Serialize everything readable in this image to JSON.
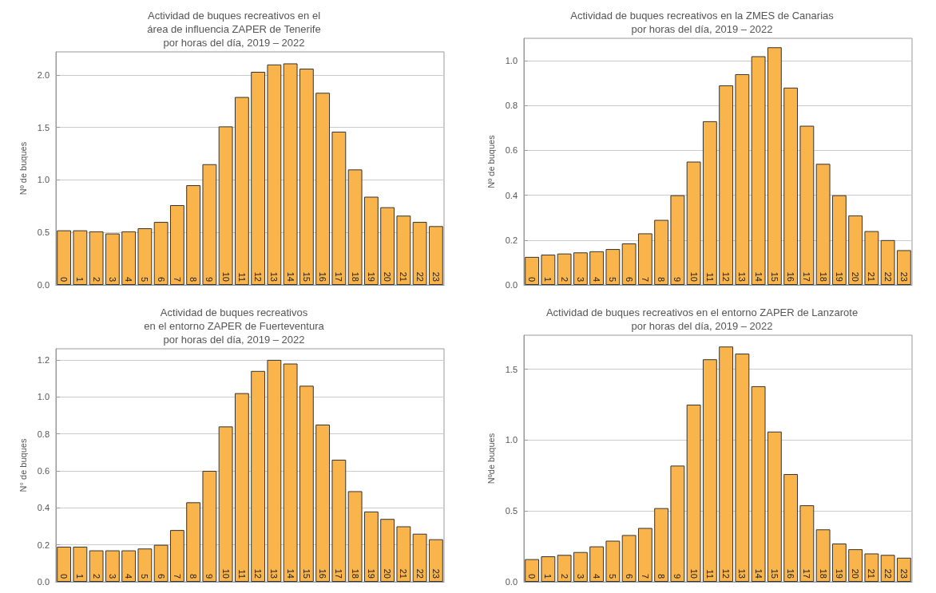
{
  "chart_data": [
    {
      "type": "bar",
      "title": "Actividad de buques recreativos en el\nárea de influencia ZAPER de Tenerife\npor horas del día, 2019 – 2022",
      "ylabel": "Nº de buques",
      "categories": [
        "0",
        "1",
        "2",
        "3",
        "4",
        "5",
        "6",
        "7",
        "8",
        "9",
        "10",
        "11",
        "12",
        "13",
        "14",
        "15",
        "16",
        "17",
        "18",
        "19",
        "20",
        "21",
        "22",
        "23"
      ],
      "values": [
        0.52,
        0.52,
        0.51,
        0.49,
        0.51,
        0.54,
        0.6,
        0.76,
        0.95,
        1.15,
        1.51,
        1.79,
        2.03,
        2.1,
        2.11,
        2.06,
        1.83,
        1.46,
        1.1,
        0.84,
        0.74,
        0.66,
        0.6,
        0.56
      ],
      "color": "#f9b54c",
      "ylim": [
        0,
        2.22
      ],
      "yticks": [
        {
          "value": 0,
          "label": "0.0"
        },
        {
          "value": 0.5,
          "label": "0.5"
        },
        {
          "value": 1,
          "label": "1.0"
        },
        {
          "value": 1.5,
          "label": "1.5"
        },
        {
          "value": 2,
          "label": "2.0"
        }
      ],
      "grid": "y"
    },
    {
      "type": "bar",
      "title": "Actividad de buques recreativos en la ZMES de Canarias\npor horas del día, 2019 – 2022",
      "ylabel": "Nº de buques",
      "categories": [
        "0",
        "1",
        "2",
        "3",
        "4",
        "5",
        "6",
        "7",
        "8",
        "9",
        "10",
        "11",
        "12",
        "13",
        "14",
        "15",
        "16",
        "17",
        "18",
        "19",
        "20",
        "21",
        "22",
        "23"
      ],
      "values": [
        0.125,
        0.135,
        0.14,
        0.145,
        0.15,
        0.16,
        0.185,
        0.23,
        0.29,
        0.4,
        0.55,
        0.73,
        0.89,
        0.94,
        1.02,
        1.06,
        0.88,
        0.71,
        0.54,
        0.4,
        0.31,
        0.24,
        0.2,
        0.155
      ],
      "color": "#f9b54c",
      "ylim": [
        0,
        1.1
      ],
      "yticks": [
        {
          "value": 0,
          "label": "0.0"
        },
        {
          "value": 0.2,
          "label": "0.2"
        },
        {
          "value": 0.4,
          "label": "0.4"
        },
        {
          "value": 0.6,
          "label": "0.6"
        },
        {
          "value": 0.8,
          "label": "0.8"
        },
        {
          "value": 1,
          "label": "1.0"
        }
      ],
      "grid": "y"
    },
    {
      "type": "bar",
      "title": "Actividad de buques recreativos\nen el entorno ZAPER de Fuerteventura\npor horas del día, 2019 – 2022",
      "ylabel": "N° de buques",
      "categories": [
        "0",
        "1",
        "2",
        "3",
        "4",
        "5",
        "6",
        "7",
        "8",
        "9",
        "10",
        "11",
        "12",
        "13",
        "14",
        "15",
        "16",
        "17",
        "18",
        "19",
        "20",
        "21",
        "22",
        "23"
      ],
      "values": [
        0.19,
        0.19,
        0.17,
        0.17,
        0.17,
        0.18,
        0.2,
        0.28,
        0.43,
        0.6,
        0.84,
        1.02,
        1.14,
        1.2,
        1.18,
        1.06,
        0.85,
        0.66,
        0.49,
        0.38,
        0.34,
        0.3,
        0.26,
        0.23
      ],
      "color": "#f9b54c",
      "ylim": [
        0,
        1.26
      ],
      "yticks": [
        {
          "value": 0,
          "label": "0.0"
        },
        {
          "value": 0.2,
          "label": "0.2"
        },
        {
          "value": 0.4,
          "label": "0.4"
        },
        {
          "value": 0.6,
          "label": "0.6"
        },
        {
          "value": 0.8,
          "label": "0.8"
        },
        {
          "value": 1,
          "label": "1.0"
        },
        {
          "value": 1.2,
          "label": "1.2"
        }
      ],
      "grid": "y"
    },
    {
      "type": "bar",
      "title": "Actividad de buques recreativos en el entorno ZAPER de Lanzarote\npor horas del día, 2019 – 2022",
      "ylabel": "Nºde buques",
      "categories": [
        "0",
        "1",
        "2",
        "3",
        "4",
        "5",
        "6",
        "7",
        "8",
        "9",
        "10",
        "11",
        "12",
        "13",
        "14",
        "15",
        "16",
        "17",
        "18",
        "19",
        "20",
        "21",
        "22",
        "23"
      ],
      "values": [
        0.16,
        0.18,
        0.19,
        0.21,
        0.25,
        0.29,
        0.33,
        0.38,
        0.52,
        0.82,
        1.25,
        1.57,
        1.66,
        1.61,
        1.38,
        1.06,
        0.76,
        0.54,
        0.37,
        0.27,
        0.23,
        0.2,
        0.19,
        0.17
      ],
      "color": "#f9b54c",
      "ylim": [
        0,
        1.74
      ],
      "yticks": [
        {
          "value": 0,
          "label": "0.0"
        },
        {
          "value": 0.5,
          "label": "0.5"
        },
        {
          "value": 1,
          "label": "1.0"
        },
        {
          "value": 1.5,
          "label": "1.5"
        }
      ],
      "grid": "y"
    }
  ]
}
